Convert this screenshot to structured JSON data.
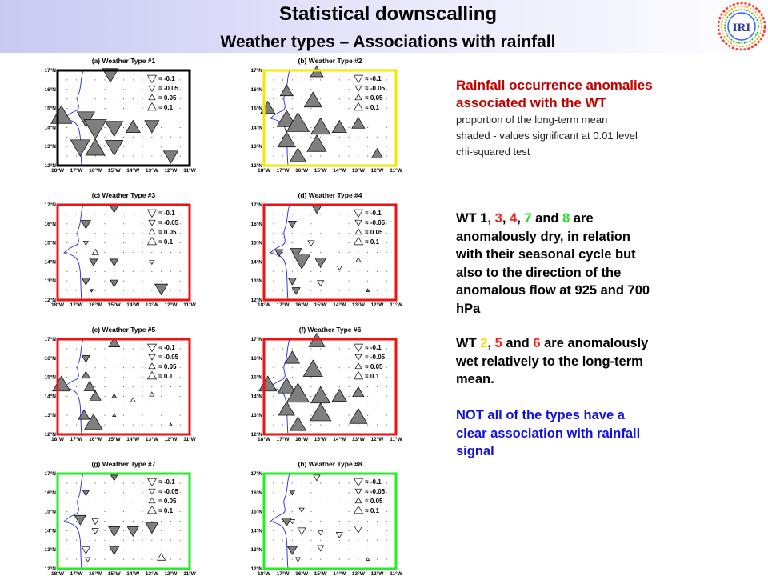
{
  "header": {
    "title": "Statistical downscalling",
    "subtitle": "Weather types – Associations with rainfall",
    "logo_text": "IRI"
  },
  "panels": [
    {
      "title": "(a) Weather Type #1",
      "frame_color": "#000000"
    },
    {
      "title": "(b) Weather Type #2",
      "frame_color": "#f7e700"
    },
    {
      "title": "(c) Weather Type #3",
      "frame_color": "#ee1111"
    },
    {
      "title": "(d) Weather Type #4",
      "frame_color": "#ee1111"
    },
    {
      "title": "(e) Weather Type #5",
      "frame_color": "#ee1111"
    },
    {
      "title": "(f) Weather Type #6",
      "frame_color": "#ee1111"
    },
    {
      "title": "(g) Weather Type #7",
      "frame_color": "#22ee22"
    },
    {
      "title": "(h) Weather Type #8",
      "frame_color": "#22ee22"
    }
  ],
  "axes": {
    "lat_labels": [
      "17°N",
      "16°N",
      "15°N",
      "14°N",
      "13°N",
      "12°N"
    ],
    "lon_labels": [
      "18°W",
      "17°W",
      "16°W",
      "15°W",
      "14°W",
      "13°W",
      "12°W",
      "11°W"
    ]
  },
  "legend": [
    "= -0.1",
    "= -0.05",
    "= 0.05",
    "= 0.1"
  ],
  "text": {
    "block1_title_l1": "Rainfall occurrence anomalies",
    "block1_title_l2": "associated with the WT",
    "block1_sub_l1": "proportion of the long-term mean",
    "block1_sub_l2": "shaded - values significant at 0.01 level",
    "block1_sub_l3": "chi-squared test",
    "dry_prefix": "WT",
    "dry_wt": [
      "1",
      "3",
      "4",
      "7",
      "8"
    ],
    "dry_sep": ",",
    "dry_and": "and",
    "dry_l1_end": "are",
    "dry_l2": "anomalously dry, in relation",
    "dry_l3": "with their seasonal cycle but",
    "dry_l4": "also to the direction of the",
    "dry_l5": "anomalous flow at 925 and 700",
    "dry_l6": "hPa",
    "wet_prefix": "WT",
    "wet_wt": [
      "2",
      "5",
      "6"
    ],
    "wet_l1_end": "are anomalously",
    "wet_l2": "wet relatively to the long-term",
    "wet_l3": "mean.",
    "note_l1": "NOT all of the types have a",
    "note_l2": "clear association with rainfall",
    "note_l3": "signal"
  }
}
